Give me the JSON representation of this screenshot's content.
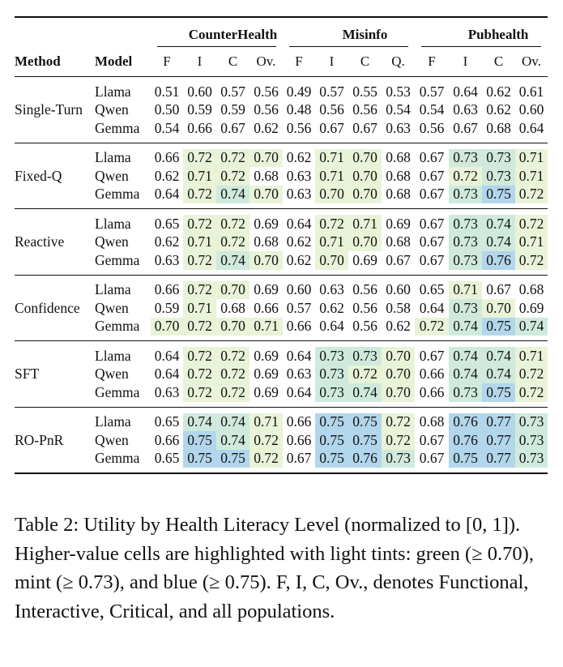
{
  "table": {
    "header": {
      "method": "Method",
      "model": "Model",
      "datasets": [
        "CounterHealth",
        "Misinfo",
        "Pubhealth"
      ],
      "subcols": [
        [
          "F",
          "I",
          "C",
          "Ov."
        ],
        [
          "F",
          "I",
          "C",
          "Q."
        ],
        [
          "F",
          "I",
          "C",
          "Ov."
        ]
      ]
    },
    "groups": [
      {
        "method": "Single-Turn",
        "rows": [
          {
            "model": "Llama",
            "values": [
              "0.51",
              "0.60",
              "0.57",
              "0.56",
              "0.49",
              "0.57",
              "0.55",
              "0.53",
              "0.57",
              "0.64",
              "0.62",
              "0.61"
            ]
          },
          {
            "model": "Qwen",
            "values": [
              "0.50",
              "0.59",
              "0.59",
              "0.56",
              "0.48",
              "0.56",
              "0.56",
              "0.54",
              "0.54",
              "0.63",
              "0.62",
              "0.60"
            ]
          },
          {
            "model": "Gemma",
            "values": [
              "0.54",
              "0.66",
              "0.67",
              "0.62",
              "0.56",
              "0.67",
              "0.67",
              "0.63",
              "0.56",
              "0.67",
              "0.68",
              "0.64"
            ]
          }
        ]
      },
      {
        "method": "Fixed-Q",
        "rows": [
          {
            "model": "Llama",
            "values": [
              "0.66",
              "0.72",
              "0.72",
              "0.70",
              "0.62",
              "0.71",
              "0.70",
              "0.68",
              "0.67",
              "0.73",
              "0.73",
              "0.71"
            ]
          },
          {
            "model": "Qwen",
            "values": [
              "0.62",
              "0.71",
              "0.72",
              "0.68",
              "0.63",
              "0.71",
              "0.70",
              "0.68",
              "0.67",
              "0.72",
              "0.73",
              "0.71"
            ]
          },
          {
            "model": "Gemma",
            "values": [
              "0.64",
              "0.72",
              "0.74",
              "0.70",
              "0.63",
              "0.70",
              "0.70",
              "0.68",
              "0.67",
              "0.73",
              "0.75",
              "0.72"
            ]
          }
        ]
      },
      {
        "method": "Reactive",
        "rows": [
          {
            "model": "Llama",
            "values": [
              "0.65",
              "0.72",
              "0.72",
              "0.69",
              "0.64",
              "0.72",
              "0.71",
              "0.69",
              "0.67",
              "0.73",
              "0.74",
              "0.72"
            ]
          },
          {
            "model": "Qwen",
            "values": [
              "0.62",
              "0.71",
              "0.72",
              "0.68",
              "0.62",
              "0.71",
              "0.70",
              "0.68",
              "0.67",
              "0.73",
              "0.74",
              "0.71"
            ]
          },
          {
            "model": "Gemma",
            "values": [
              "0.63",
              "0.72",
              "0.74",
              "0.70",
              "0.62",
              "0.70",
              "0.69",
              "0.67",
              "0.67",
              "0.73",
              "0.76",
              "0.72"
            ]
          }
        ]
      },
      {
        "method": "Confidence",
        "rows": [
          {
            "model": "Llama",
            "values": [
              "0.66",
              "0.72",
              "0.70",
              "0.69",
              "0.60",
              "0.63",
              "0.56",
              "0.60",
              "0.65",
              "0.71",
              "0.67",
              "0.68"
            ]
          },
          {
            "model": "Qwen",
            "values": [
              "0.59",
              "0.71",
              "0.68",
              "0.66",
              "0.57",
              "0.62",
              "0.56",
              "0.58",
              "0.64",
              "0.73",
              "0.70",
              "0.69"
            ]
          },
          {
            "model": "Gemma",
            "values": [
              "0.70",
              "0.72",
              "0.70",
              "0.71",
              "0.66",
              "0.64",
              "0.56",
              "0.62",
              "0.72",
              "0.74",
              "0.75",
              "0.74"
            ]
          }
        ]
      },
      {
        "method": "SFT",
        "rows": [
          {
            "model": "Llama",
            "values": [
              "0.64",
              "0.72",
              "0.72",
              "0.69",
              "0.64",
              "0.73",
              "0.73",
              "0.70",
              "0.67",
              "0.74",
              "0.74",
              "0.71"
            ]
          },
          {
            "model": "Qwen",
            "values": [
              "0.64",
              "0.72",
              "0.72",
              "0.69",
              "0.63",
              "0.73",
              "0.72",
              "0.70",
              "0.66",
              "0.74",
              "0.74",
              "0.72"
            ]
          },
          {
            "model": "Gemma",
            "values": [
              "0.63",
              "0.72",
              "0.72",
              "0.69",
              "0.64",
              "0.73",
              "0.74",
              "0.70",
              "0.66",
              "0.73",
              "0.75",
              "0.72"
            ]
          }
        ]
      },
      {
        "method": "RO-PnR",
        "rows": [
          {
            "model": "Llama",
            "values": [
              "0.65",
              "0.74",
              "0.74",
              "0.71",
              "0.66",
              "0.75",
              "0.75",
              "0.72",
              "0.68",
              "0.76",
              "0.77",
              "0.73"
            ]
          },
          {
            "model": "Qwen",
            "values": [
              "0.66",
              "0.75",
              "0.74",
              "0.72",
              "0.66",
              "0.75",
              "0.75",
              "0.72",
              "0.67",
              "0.76",
              "0.77",
              "0.73"
            ]
          },
          {
            "model": "Gemma",
            "values": [
              "0.65",
              "0.75",
              "0.75",
              "0.72",
              "0.67",
              "0.75",
              "0.76",
              "0.73",
              "0.67",
              "0.75",
              "0.77",
              "0.73"
            ]
          }
        ]
      }
    ],
    "highlight_colors": {
      "green": "#e8f3d8",
      "mint": "#cfeadd",
      "blue": "#b2d6eb"
    }
  },
  "caption": {
    "text": "Table 2: Utility by Health Literacy Level (normalized to [0, 1]). Higher-value cells are highlighted with light tints: green (≥ 0.70), mint (≥ 0.73), and blue (≥ 0.75). F, I, C, Ov., denotes Functional, Interactive, Critical, and all populations."
  }
}
